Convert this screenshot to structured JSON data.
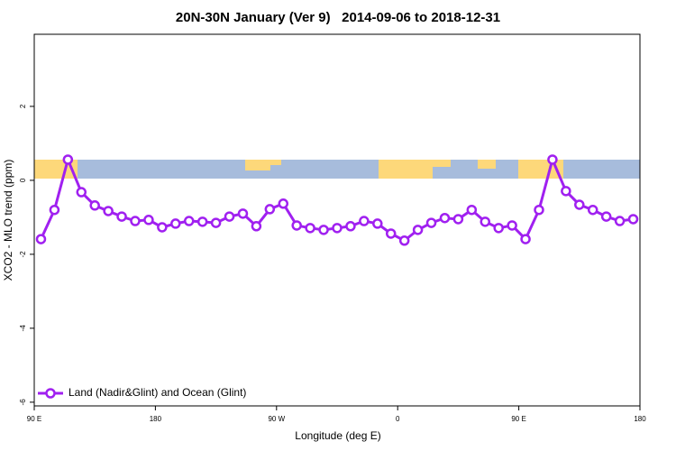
{
  "chart_data": {
    "type": "line",
    "title": "20N-30N January (Ver 9)   2014-09-06 to 2018-12-31",
    "x_label": "Longitude (deg E)",
    "y_label": "XCO2 - MLO trend (ppm)",
    "xlim": [
      90,
      540
    ],
    "xticks": [
      {
        "value": 90,
        "label": "90 E"
      },
      180,
      {
        "value": 270,
        "label": "90 W"
      },
      {
        "value": 360,
        "label": "0"
      },
      {
        "value": 450,
        "label": "90 E"
      },
      {
        "value": 540,
        "label": "180"
      }
    ],
    "ylim": [
      -6.1,
      3.95
    ],
    "yticks": [
      -6,
      -4,
      -2,
      0,
      2
    ],
    "legend_position": "bottom-left",
    "x": [
      95,
      105,
      115,
      125,
      135,
      145,
      155,
      165,
      175,
      185,
      195,
      205,
      215,
      225,
      235,
      245,
      255,
      265,
      275,
      285,
      295,
      305,
      315,
      325,
      335,
      345,
      355,
      365,
      375,
      385,
      395,
      405,
      415,
      425,
      435,
      445,
      455,
      465,
      475,
      485,
      495,
      505,
      515,
      525,
      535
    ],
    "series": [
      {
        "name": "Land (Nadir&Glint) and Ocean (Glint)",
        "color": "#a020f0",
        "values": [
          -1.59,
          -0.8,
          0.56,
          -0.32,
          -0.68,
          -0.83,
          -0.98,
          -1.1,
          -1.07,
          -1.27,
          -1.17,
          -1.1,
          -1.12,
          -1.15,
          -0.98,
          -0.9,
          -1.24,
          -0.78,
          -0.63,
          -1.22,
          -1.29,
          -1.34,
          -1.29,
          -1.24,
          -1.1,
          -1.17,
          -1.44,
          -1.63,
          -1.34,
          -1.15,
          -1.02,
          -1.05,
          -0.8,
          -1.12,
          -1.29,
          -1.22,
          -1.59,
          -0.8,
          0.56,
          -0.29,
          -0.66,
          -0.8,
          -0.98,
          -1.1,
          -1.05
        ]
      }
    ]
  }
}
